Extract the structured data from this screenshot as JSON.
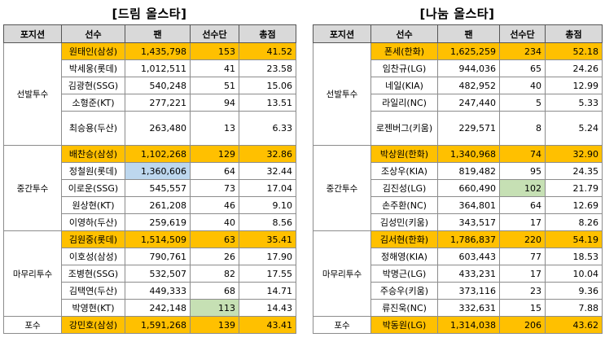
{
  "headers": [
    "포지션",
    "선수",
    "팬",
    "선수단",
    "총점"
  ],
  "dream": {
    "title": "[드림 올스타]",
    "groups": [
      {
        "position": "선발투수",
        "rows": [
          {
            "player": "원태인(삼성)",
            "fan": "1,435,798",
            "team": "153",
            "total": "41.52",
            "hl": true
          },
          {
            "player": "박세웅(롯데)",
            "fan": "1,012,511",
            "team": "41",
            "total": "23.58"
          },
          {
            "player": "김광현(SSG)",
            "fan": "540,248",
            "team": "51",
            "total": "15.06"
          },
          {
            "player": "소형준(KT)",
            "fan": "277,221",
            "team": "94",
            "total": "13.51"
          },
          {
            "player": "최승용(두산)",
            "fan": "263,480",
            "team": "13",
            "total": "6.33",
            "tall": true
          }
        ]
      },
      {
        "position": "중간투수",
        "rows": [
          {
            "player": "배찬승(삼성)",
            "fan": "1,102,268",
            "team": "129",
            "total": "32.86",
            "hl": true
          },
          {
            "player": "정철원(롯데)",
            "fan": "1,360,606",
            "team": "64",
            "total": "32.44",
            "fanColor": "blue"
          },
          {
            "player": "이로운(SSG)",
            "fan": "545,557",
            "team": "73",
            "total": "17.04"
          },
          {
            "player": "원상현(KT)",
            "fan": "261,208",
            "team": "46",
            "total": "9.10"
          },
          {
            "player": "이영하(두산)",
            "fan": "259,619",
            "team": "40",
            "total": "8.56"
          }
        ]
      },
      {
        "position": "마무리투수",
        "rows": [
          {
            "player": "김원중(롯데)",
            "fan": "1,514,509",
            "team": "63",
            "total": "35.41",
            "hl": true
          },
          {
            "player": "이호성(삼성)",
            "fan": "790,761",
            "team": "26",
            "total": "17.90"
          },
          {
            "player": "조병현(SSG)",
            "fan": "532,507",
            "team": "82",
            "total": "17.55"
          },
          {
            "player": "김택연(두산)",
            "fan": "449,333",
            "team": "68",
            "total": "14.71"
          },
          {
            "player": "박영현(KT)",
            "fan": "242,148",
            "team": "113",
            "total": "14.43",
            "teamColor": "green"
          }
        ]
      },
      {
        "position": "포수",
        "rows": [
          {
            "player": "강민호(삼성)",
            "fan": "1,591,268",
            "team": "139",
            "total": "43.41",
            "hl": true
          }
        ]
      }
    ]
  },
  "nanum": {
    "title": "[나눔 올스타]",
    "groups": [
      {
        "position": "선발투수",
        "rows": [
          {
            "player": "폰세(한화)",
            "fan": "1,625,259",
            "team": "234",
            "total": "52.18",
            "hl": true
          },
          {
            "player": "임찬규(LG)",
            "fan": "944,036",
            "team": "65",
            "total": "24.26"
          },
          {
            "player": "네일(KIA)",
            "fan": "482,952",
            "team": "40",
            "total": "12.99"
          },
          {
            "player": "라일리(NC)",
            "fan": "247,440",
            "team": "5",
            "total": "5.33"
          },
          {
            "player": "로젠버그(키움)",
            "fan": "229,571",
            "team": "8",
            "total": "5.24",
            "tall": true
          }
        ]
      },
      {
        "position": "중간투수",
        "rows": [
          {
            "player": "박상원(한화)",
            "fan": "1,340,968",
            "team": "74",
            "total": "32.90",
            "hl": true
          },
          {
            "player": "조상우(KIA)",
            "fan": "819,482",
            "team": "95",
            "total": "24.35"
          },
          {
            "player": "김진성(LG)",
            "fan": "660,490",
            "team": "102",
            "total": "21.79",
            "teamColor": "green"
          },
          {
            "player": "손주환(NC)",
            "fan": "364,801",
            "team": "64",
            "total": "12.69"
          },
          {
            "player": "김성민(키움)",
            "fan": "343,517",
            "team": "17",
            "total": "8.26"
          }
        ]
      },
      {
        "position": "마무리투수",
        "rows": [
          {
            "player": "김서현(한화)",
            "fan": "1,786,837",
            "team": "220",
            "total": "54.19",
            "hl": true
          },
          {
            "player": "정해영(KIA)",
            "fan": "603,443",
            "team": "77",
            "total": "18.53"
          },
          {
            "player": "박명근(LG)",
            "fan": "433,231",
            "team": "17",
            "total": "10.04"
          },
          {
            "player": "주승우(키움)",
            "fan": "373,116",
            "team": "23",
            "total": "9.36"
          },
          {
            "player": "류진욱(NC)",
            "fan": "332,631",
            "team": "15",
            "total": "7.88"
          }
        ]
      },
      {
        "position": "포수",
        "rows": [
          {
            "player": "박동원(LG)",
            "fan": "1,314,038",
            "team": "206",
            "total": "43.62",
            "hl": true
          }
        ]
      }
    ]
  }
}
